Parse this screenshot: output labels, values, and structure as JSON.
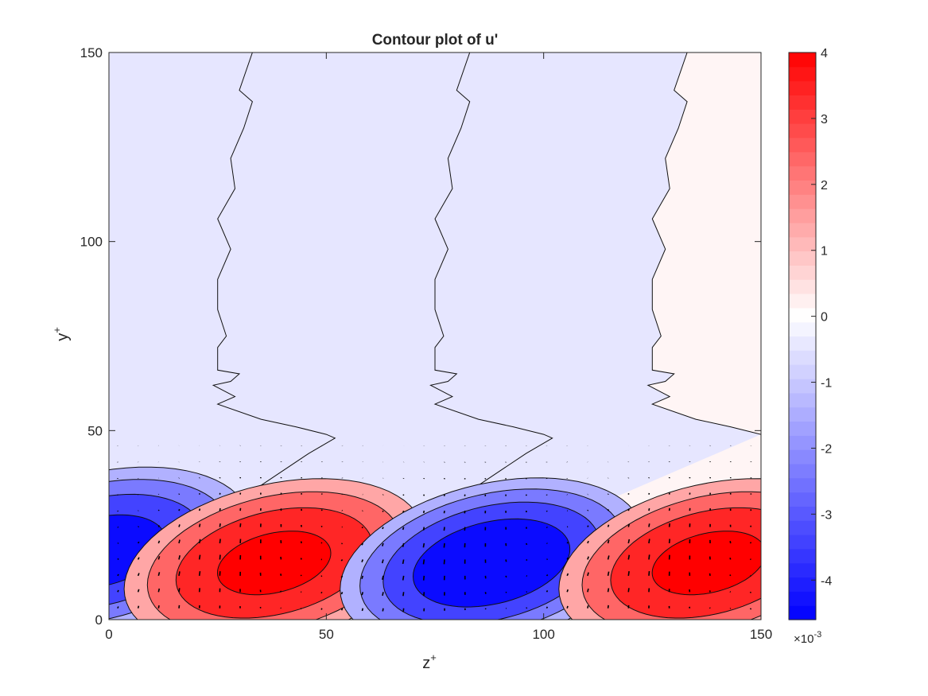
{
  "chart_data": {
    "type": "contour",
    "title": "Contour plot of u'",
    "xlabel": {
      "base": "z",
      "sup": "+"
    },
    "ylabel": {
      "base": "y",
      "sup": "+"
    },
    "xlim": [
      0,
      150
    ],
    "ylim": [
      0,
      150
    ],
    "xticks": [
      "0",
      "50",
      "100",
      "150"
    ],
    "yticks": [
      "0",
      "50",
      "100",
      "150"
    ],
    "grid": false,
    "overlay": "velocity vectors (quiver), black",
    "colorbar": {
      "location": "right",
      "colormap": "blue-white-red",
      "clim": [
        -4.6,
        4.0
      ],
      "ticks": [
        "-4",
        "-3",
        "-2",
        "-1",
        "0",
        "1",
        "2",
        "3",
        "4"
      ],
      "exponent": {
        "base": "×10",
        "sup": "-3"
      }
    },
    "contour_levels": [
      -4,
      -3,
      -2,
      -1,
      0,
      1,
      2,
      3,
      4
    ],
    "streaks": [
      {
        "sign": "negative",
        "center_z": -2,
        "center_y": 18,
        "peak": -4.2
      },
      {
        "sign": "positive",
        "center_z": 38,
        "center_y": 15,
        "peak": 4.0
      },
      {
        "sign": "negative",
        "center_z": 88,
        "center_y": 15,
        "peak": -4.6
      },
      {
        "sign": "positive",
        "center_z": 138,
        "center_y": 15,
        "peak": 4.0
      }
    ],
    "zero_contours": [
      {
        "z": [
          33,
          30,
          33,
          31,
          28,
          29,
          25,
          28,
          25,
          25,
          27,
          25,
          25,
          30,
          28,
          24,
          29,
          25,
          35,
          43,
          50,
          52,
          46,
          33,
          26,
          13,
          6,
          1
        ],
        "y": [
          150,
          140,
          137,
          130,
          122,
          114,
          106,
          98,
          90,
          82,
          75,
          72,
          66,
          65,
          63,
          62,
          59,
          57,
          53,
          51,
          49,
          48,
          44,
          34,
          27,
          9,
          3,
          0
        ]
      },
      {
        "z": [
          83,
          80,
          83,
          81,
          78,
          79,
          75,
          78,
          75,
          75,
          77,
          75,
          75,
          80,
          78,
          74,
          79,
          75,
          85,
          93,
          100,
          102,
          96,
          83,
          76,
          63,
          56,
          51
        ],
        "y": [
          150,
          140,
          137,
          130,
          122,
          114,
          106,
          98,
          90,
          82,
          75,
          72,
          66,
          65,
          63,
          62,
          59,
          57,
          53,
          51,
          49,
          48,
          44,
          34,
          27,
          9,
          3,
          0
        ]
      },
      {
        "z": [
          133,
          130,
          133,
          131,
          128,
          129,
          125,
          128,
          125,
          125,
          127,
          125,
          125,
          130,
          128,
          124,
          129,
          125,
          135,
          143,
          150
        ],
        "y": [
          150,
          140,
          137,
          130,
          122,
          114,
          106,
          98,
          90,
          82,
          75,
          72,
          66,
          65,
          63,
          62,
          59,
          57,
          53,
          51,
          49
        ]
      }
    ]
  }
}
